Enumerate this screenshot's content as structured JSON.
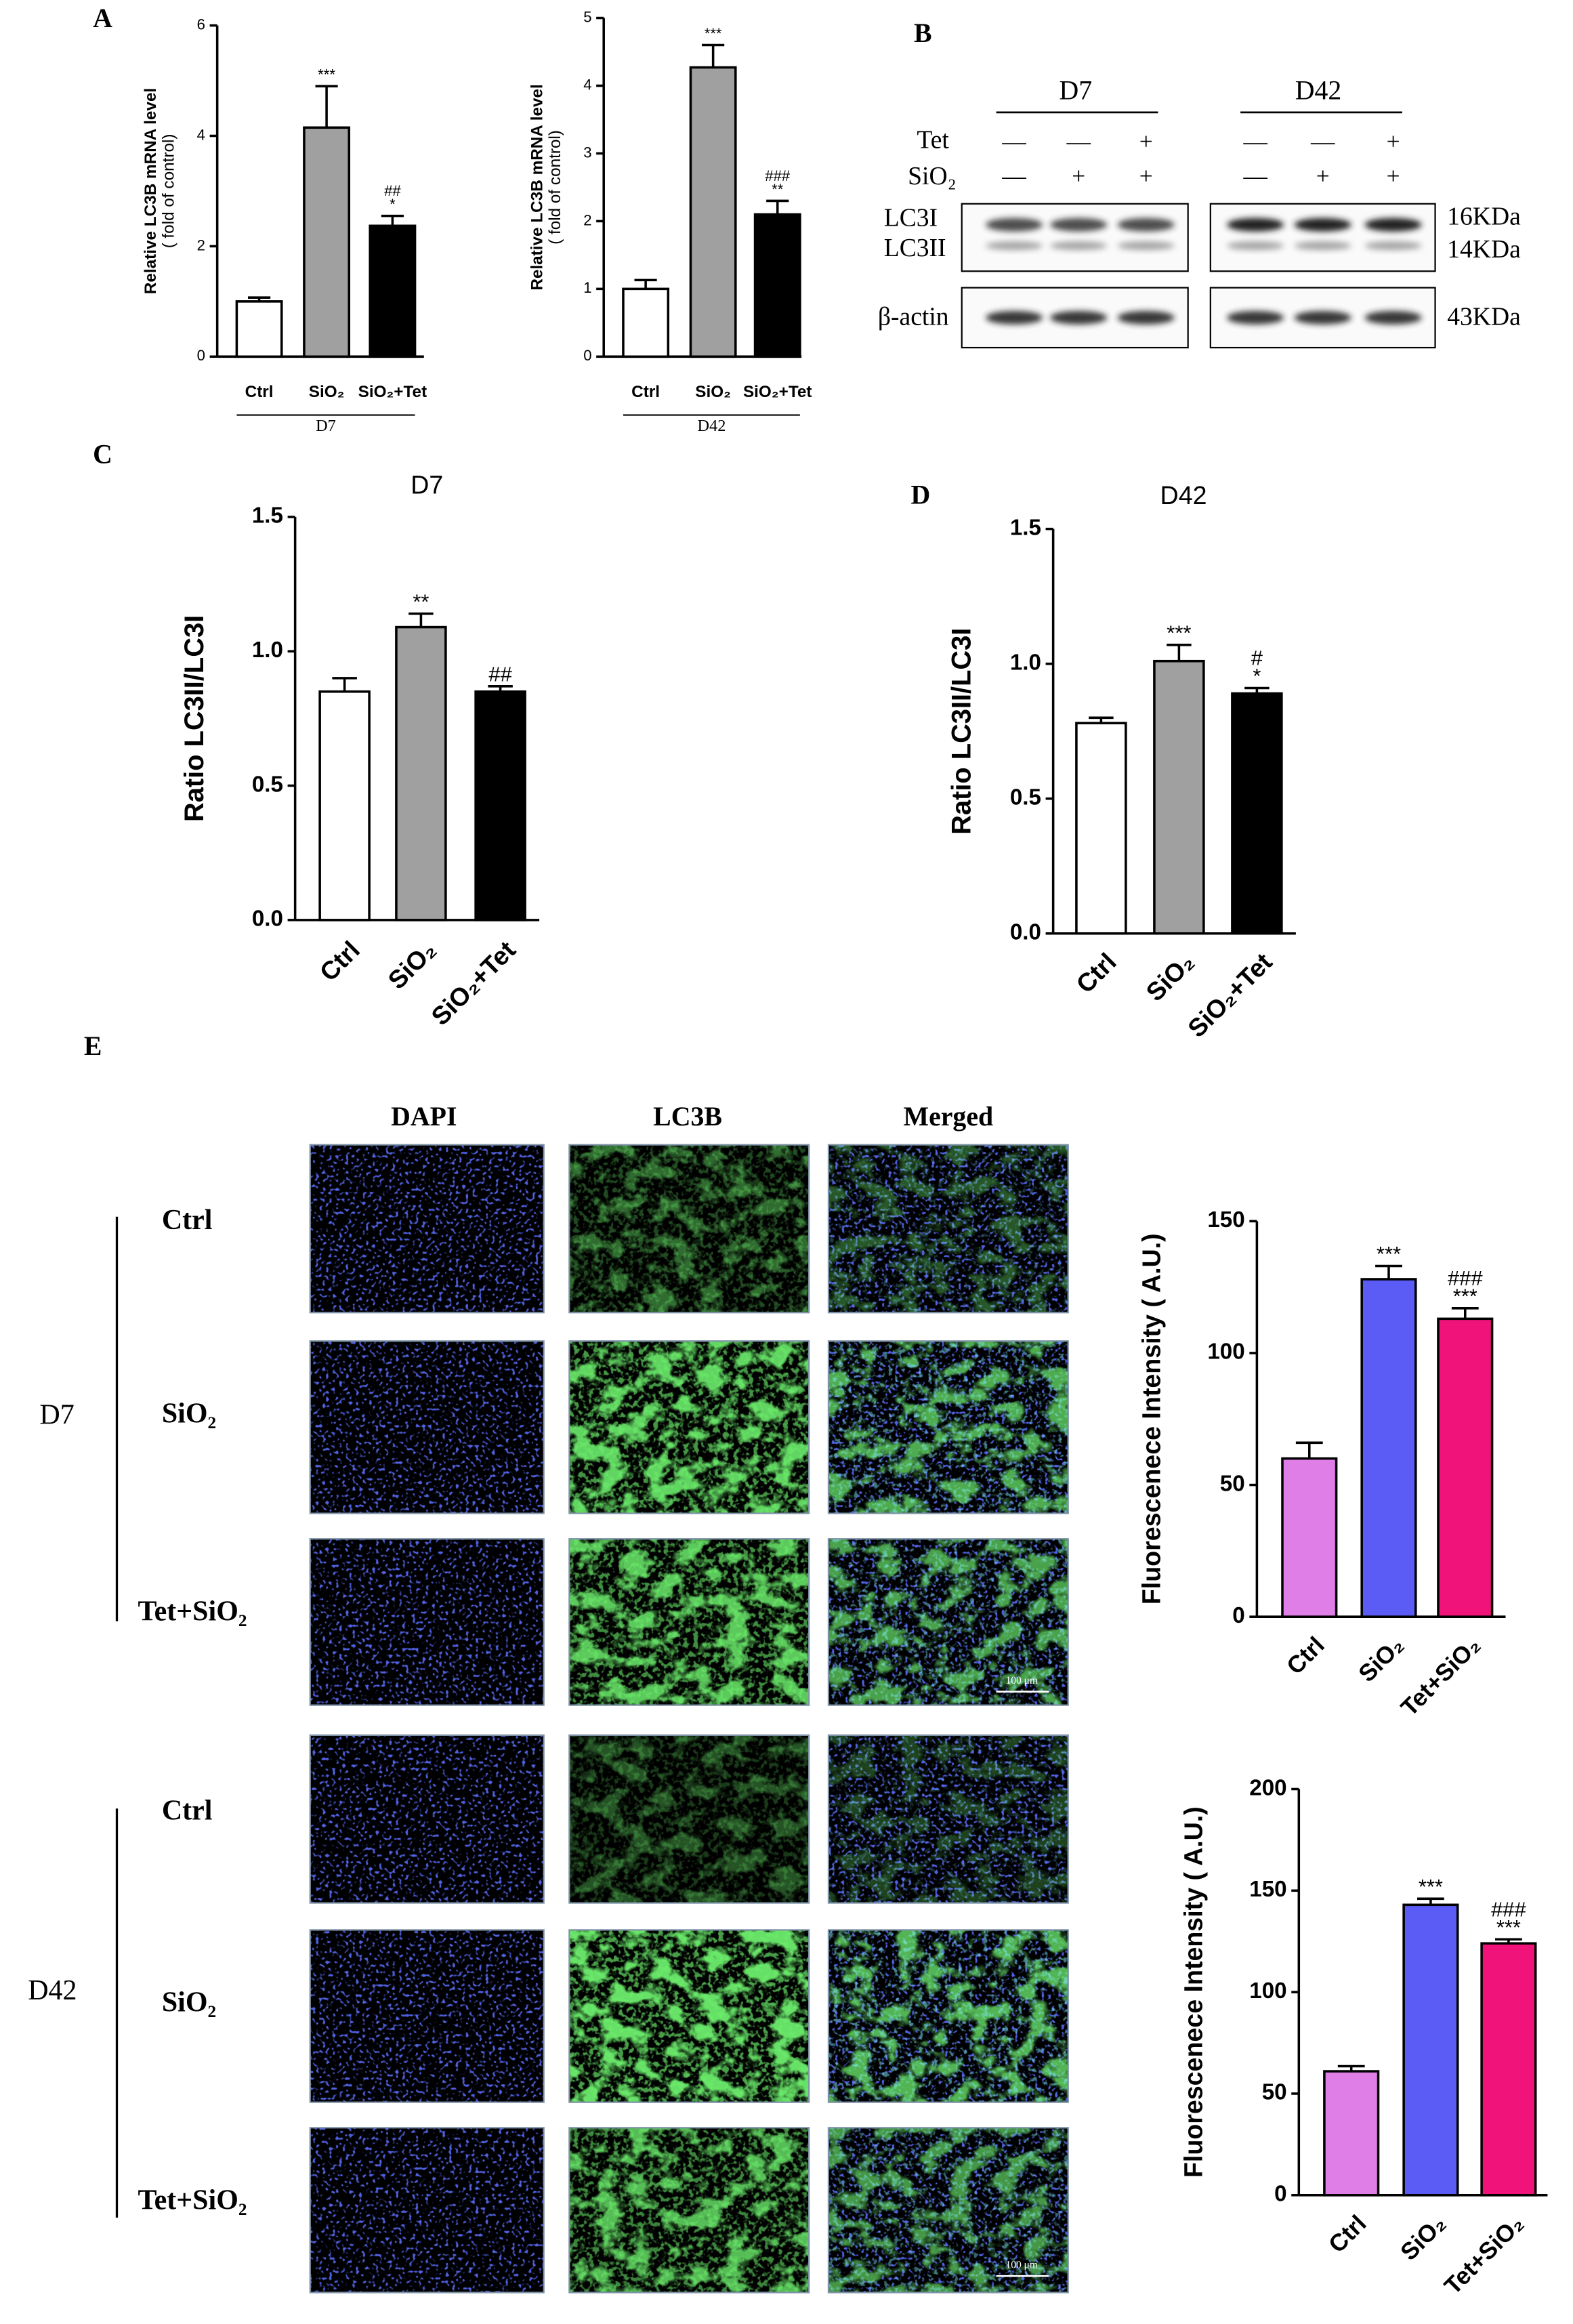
{
  "panel_labels": [
    "A",
    "B",
    "C",
    "D",
    "E"
  ],
  "chart_data": [
    {
      "type": "bar",
      "group_label": "D7",
      "ylabel": [
        "Relative LC3B mRNA level",
        "( fold of control)"
      ],
      "categories": [
        "Ctrl",
        "SiO₂",
        "SiO₂+Tet"
      ],
      "values": [
        1,
        4.15,
        2.37
      ],
      "errors": [
        0.07,
        0.75,
        0.18
      ],
      "colors": [
        "#ffffff",
        "#a0a0a0",
        "#000000"
      ],
      "annotations": [
        [],
        [
          "***"
        ],
        [
          "##",
          "*"
        ]
      ],
      "ylim": [
        0,
        6
      ],
      "yticks": [
        0,
        2,
        4,
        6
      ]
    },
    {
      "type": "bar",
      "group_label": "D42",
      "ylabel": [
        "Relative LC3B mRNA level",
        "( fold of control)"
      ],
      "categories": [
        "Ctrl",
        "SiO₂",
        "SiO₂+Tet"
      ],
      "values": [
        1,
        4.27,
        2.1
      ],
      "errors": [
        0.13,
        0.33,
        0.2
      ],
      "colors": [
        "#ffffff",
        "#a0a0a0",
        "#000000"
      ],
      "annotations": [
        [],
        [
          "***"
        ],
        [
          "###",
          "**"
        ]
      ],
      "ylim": [
        0,
        5
      ],
      "yticks": [
        0,
        1,
        2,
        3,
        4,
        5
      ]
    },
    {
      "type": "bar",
      "title": "D7",
      "ylabel": [
        "Ratio LC3II/LC3I"
      ],
      "categories": [
        "Ctrl",
        "SiO₂",
        "SiO₂+Tet"
      ],
      "values": [
        0.85,
        1.09,
        0.85
      ],
      "errors": [
        0.05,
        0.05,
        0.02
      ],
      "colors": [
        "#ffffff",
        "#a0a0a0",
        "#000000"
      ],
      "annotations": [
        [],
        [
          "**"
        ],
        [
          "##"
        ]
      ],
      "ylim": [
        0,
        1.5
      ],
      "yticks": [
        {
          "value": 0,
          "label": "0.0"
        },
        0.5,
        {
          "value": 1,
          "label": "1.0"
        },
        1.5
      ]
    },
    {
      "type": "bar",
      "title": "D42",
      "ylabel": [
        "Ratio LC3II/LC3I"
      ],
      "categories": [
        "Ctrl",
        "SiO₂",
        "SiO₂+Tet"
      ],
      "values": [
        0.78,
        1.01,
        0.89
      ],
      "errors": [
        0.02,
        0.06,
        0.02
      ],
      "colors": [
        "#ffffff",
        "#a0a0a0",
        "#000000"
      ],
      "annotations": [
        [],
        [
          "***"
        ],
        [
          "#",
          "*"
        ]
      ],
      "ylim": [
        0,
        1.5
      ],
      "yticks": [
        {
          "value": 0,
          "label": "0.0"
        },
        0.5,
        {
          "value": 1,
          "label": "1.0"
        },
        1.5
      ]
    },
    {
      "type": "bar",
      "ylabel": [
        "Fluorescenece Intensity ( A.U.)"
      ],
      "categories": [
        "Ctrl",
        "SiO₂",
        "Tet+SiO₂"
      ],
      "values": [
        60,
        128,
        113
      ],
      "errors": [
        6,
        5,
        4
      ],
      "colors": [
        "#e07ee8",
        "#5b5bf5",
        "#f0147a"
      ],
      "annotations": [
        [],
        [
          "***"
        ],
        [
          "###",
          "***"
        ]
      ],
      "ylim": [
        0,
        150
      ],
      "yticks": [
        0,
        50,
        100,
        150
      ]
    },
    {
      "type": "bar",
      "ylabel": [
        "Fluorescenece Intensity ( A.U.)"
      ],
      "categories": [
        "Ctrl",
        "SiO₂",
        "Tet+SiO₂"
      ],
      "values": [
        61,
        143,
        124
      ],
      "errors": [
        2.5,
        3,
        2
      ],
      "colors": [
        "#e07ee8",
        "#5b5bf5",
        "#f0147a"
      ],
      "annotations": [
        [],
        [
          "***"
        ],
        [
          "###",
          "***"
        ]
      ],
      "ylim": [
        0,
        200
      ],
      "yticks": [
        0,
        50,
        100,
        150,
        200
      ]
    }
  ],
  "blot": {
    "groups": [
      "D7",
      "D42"
    ],
    "row_labels": [
      "Tet",
      "SiO₂"
    ],
    "tet": [
      "—",
      "—",
      "+",
      "—",
      "—",
      "+"
    ],
    "sio2": [
      "—",
      "+",
      "+",
      "—",
      "+",
      "+"
    ],
    "bands": [
      "LC3I",
      "LC3II",
      "β-actin"
    ],
    "sizes": [
      "16KDa",
      "14KDa",
      "43KDa"
    ]
  },
  "images": {
    "columns": [
      "DAPI",
      "LC3B",
      "Merged"
    ],
    "groups": [
      {
        "name": "D7",
        "rows": [
          "Ctrl",
          "SiO₂",
          "Tet+SiO₂"
        ]
      },
      {
        "name": "D42",
        "rows": [
          "Ctrl",
          "SiO₂",
          "Tet+SiO₂"
        ]
      }
    ],
    "scale_bar": "100 μm"
  }
}
